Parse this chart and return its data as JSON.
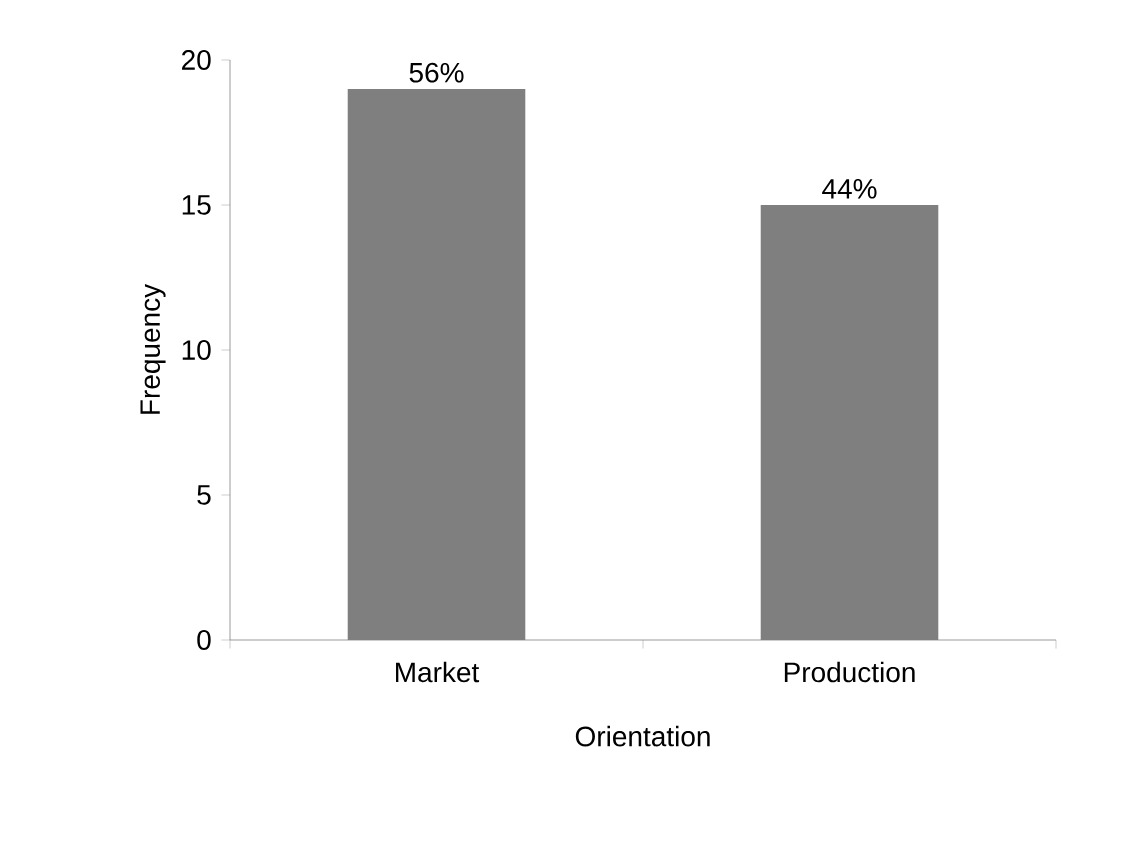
{
  "chart_data": {
    "type": "bar",
    "xlabel": "Orientation",
    "ylabel": "Frequency",
    "categories": [
      "Market",
      "Production"
    ],
    "values": [
      19,
      15
    ],
    "color": "#7f7f7f",
    "ylim": [
      0,
      20
    ],
    "yticks": [
      0,
      5,
      10,
      15,
      20
    ],
    "annotations": [
      {
        "text": "56%",
        "x": "Market",
        "y": 19
      },
      {
        "text": "44%",
        "x": "Production",
        "y": 15
      }
    ]
  }
}
